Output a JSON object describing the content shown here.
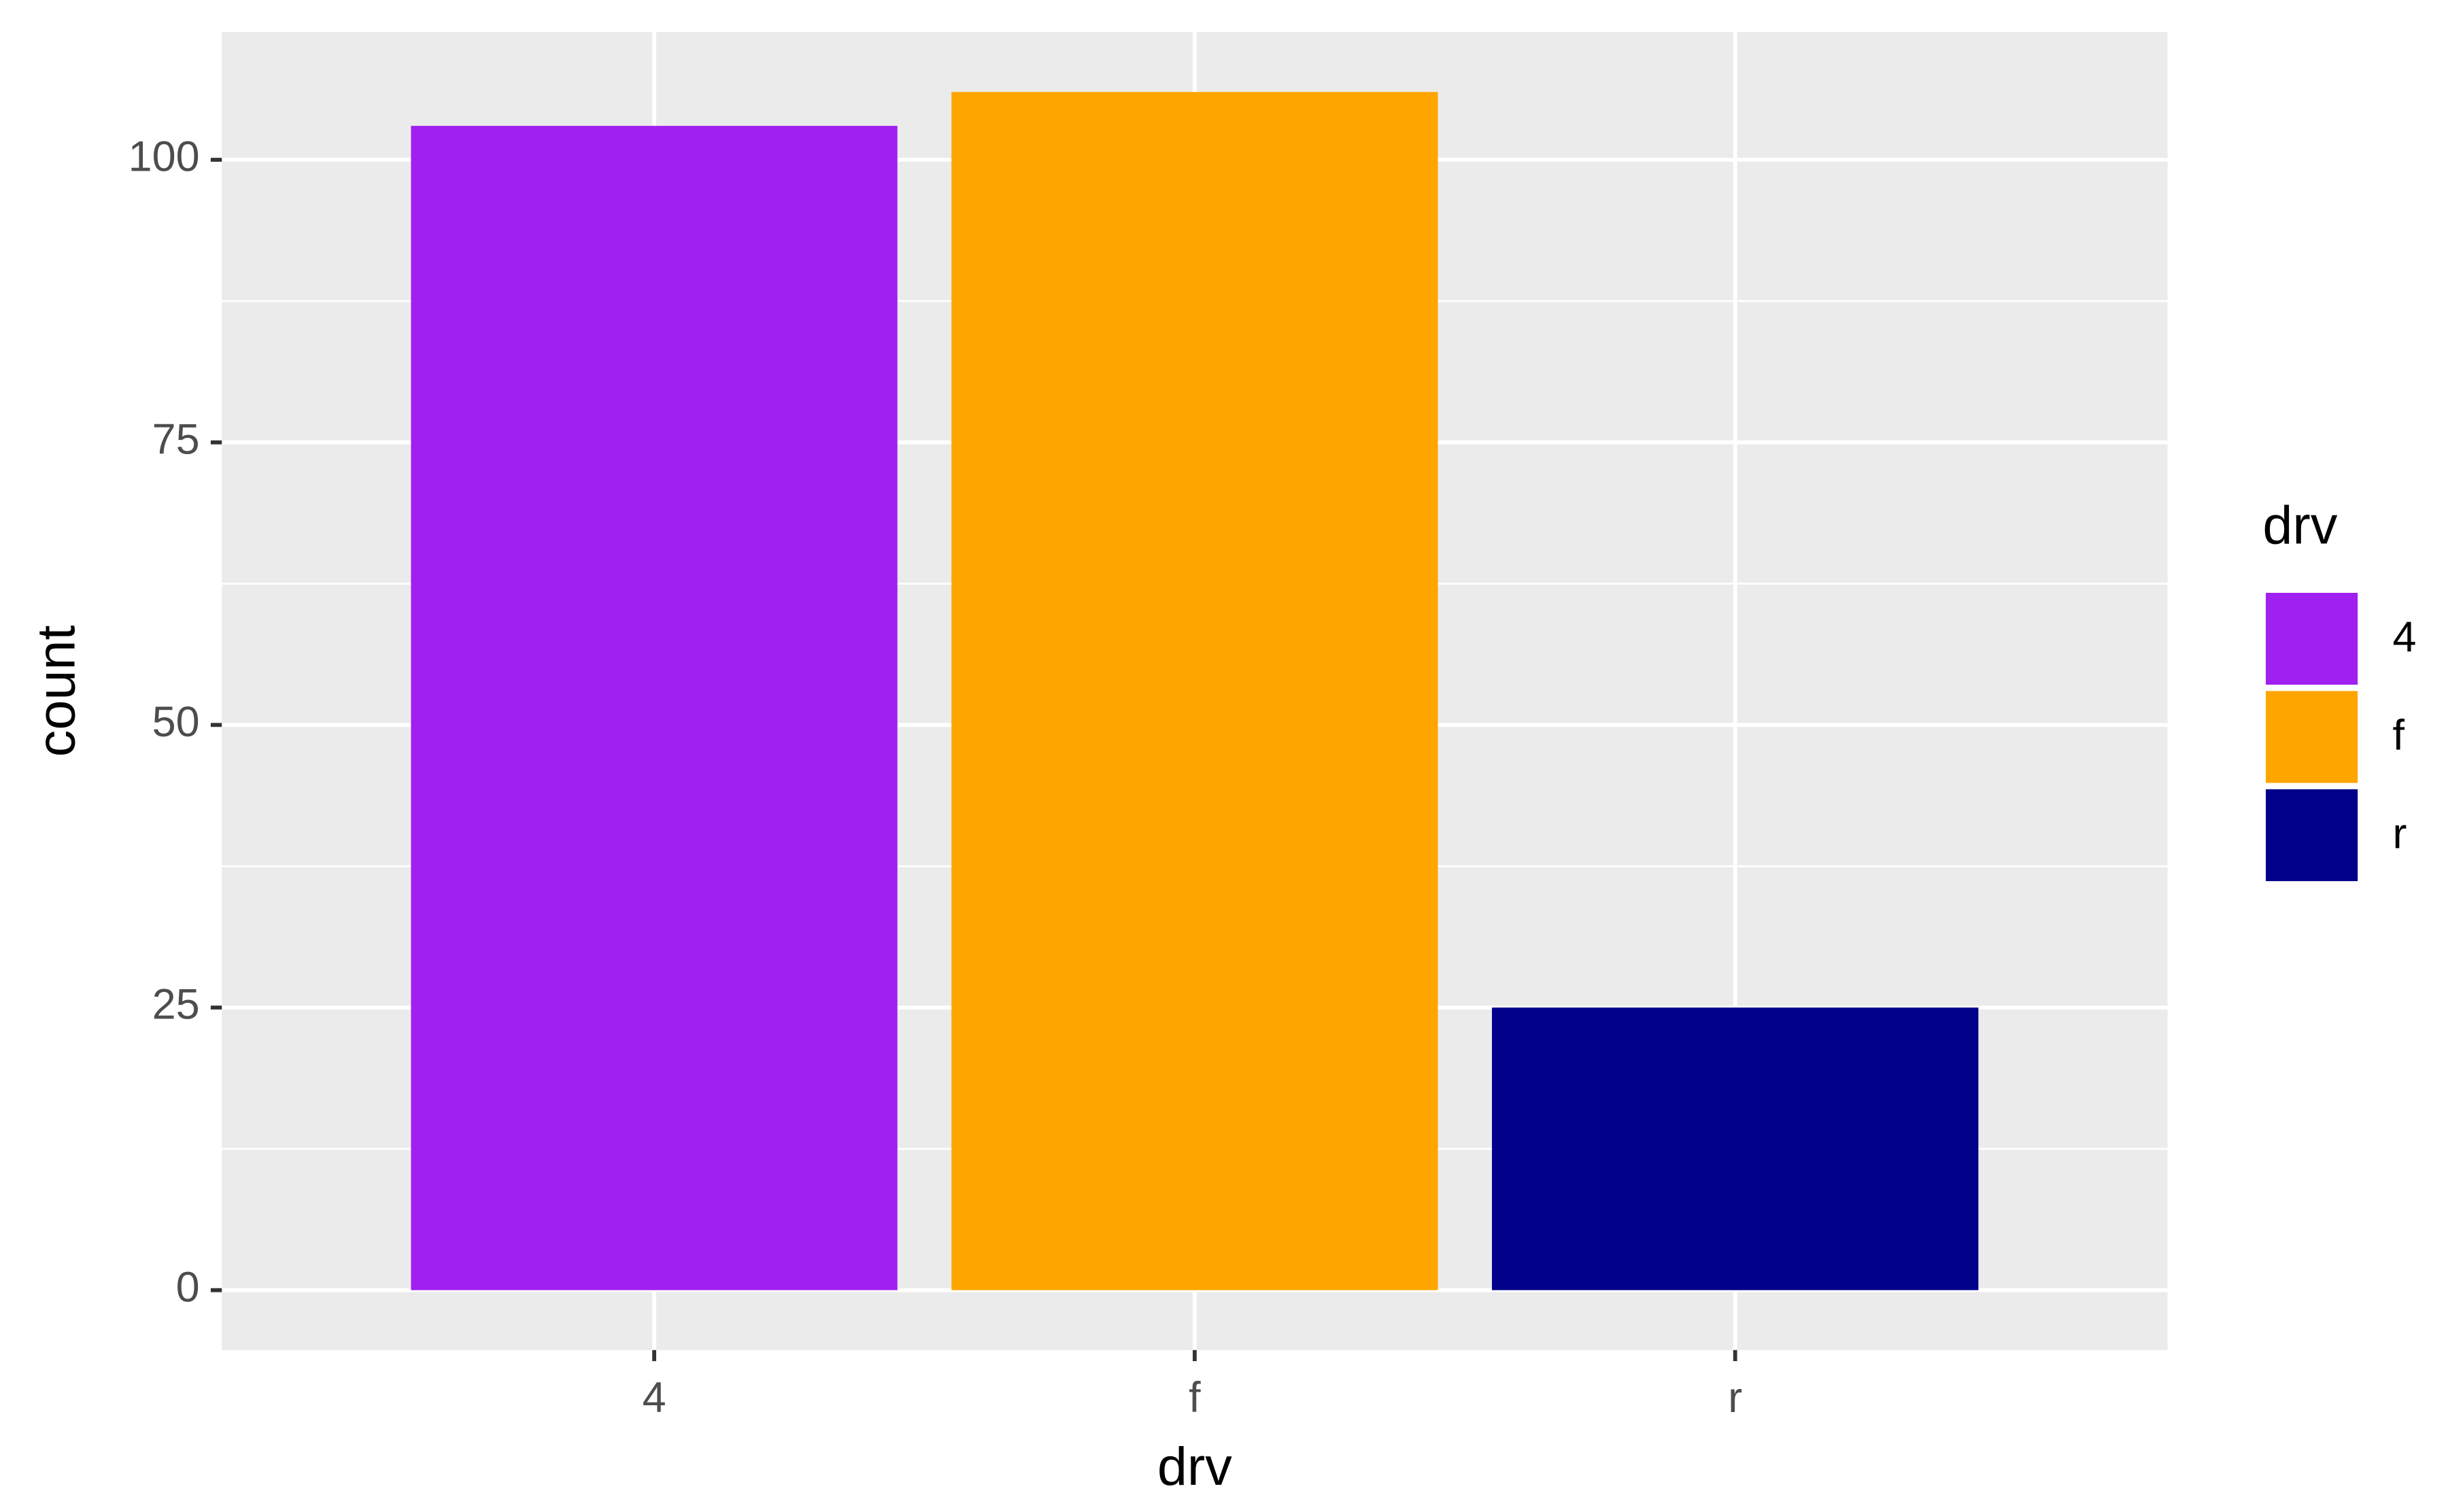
{
  "chart_data": {
    "type": "bar",
    "x_label": "drv",
    "y_label": "count",
    "categories": [
      "4",
      "f",
      "r"
    ],
    "values": [
      103,
      106,
      25
    ],
    "colors": [
      "#a020f0",
      "#ffa500",
      "#00008b"
    ],
    "legend_title": "drv",
    "legend": "right",
    "ylim": [
      -5.3,
      111.3
    ],
    "yticks": [
      0,
      25,
      50,
      75,
      100
    ],
    "grid": true
  }
}
